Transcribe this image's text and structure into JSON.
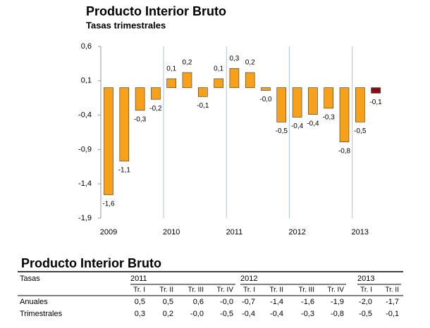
{
  "chart_data": {
    "type": "bar",
    "title": "Producto Interior Bruto",
    "subtitle": "Tasas trimestrales",
    "categories": [
      "2009",
      null,
      null,
      null,
      "2010",
      null,
      null,
      null,
      "2011",
      null,
      null,
      null,
      "2012",
      null,
      null,
      null,
      "2013",
      null
    ],
    "values": [
      -1.56,
      -1.07,
      -0.33,
      -0.17,
      0.13,
      0.22,
      -0.13,
      0.13,
      0.28,
      0.22,
      -0.04,
      -0.5,
      -0.43,
      -0.39,
      -0.3,
      -0.79,
      -0.5,
      -0.08
    ],
    "value_labels": [
      "-1,6",
      "-1,1",
      "-0,3",
      "-0,2",
      "0,1",
      "0,2",
      "-0,1",
      "0,1",
      "0,3",
      "0,2",
      "-0,0",
      "-0,5",
      "-0,4",
      "-0,4",
      "-0,3",
      "-0,8",
      "-0,5",
      "-0,1"
    ],
    "colors": [
      "#f7a11a",
      "#f7a11a",
      "#f7a11a",
      "#f7a11a",
      "#f7a11a",
      "#f7a11a",
      "#f7a11a",
      "#f7a11a",
      "#f7a11a",
      "#f7a11a",
      "#f7a11a",
      "#f7a11a",
      "#f7a11a",
      "#f7a11a",
      "#f7a11a",
      "#f7a11a",
      "#f7a11a",
      "#8b0a0a"
    ],
    "ylim": [
      -1.9,
      0.6
    ],
    "yticks": [
      {
        "value": 0.6,
        "label": "0,6"
      },
      {
        "value": 0.1,
        "label": "0,1"
      },
      {
        "value": -0.4,
        "label": "-0,4"
      },
      {
        "value": -0.9,
        "label": "-0,9"
      },
      {
        "value": -1.4,
        "label": "-1,4"
      },
      {
        "value": -1.9,
        "label": "-1,9"
      }
    ],
    "grid": true
  },
  "table": {
    "title": "Producto Interior Bruto",
    "corner": "Tasas",
    "groups": [
      {
        "year": "2011",
        "quarters": [
          "Tr. I",
          "Tr. II",
          "Tr. III",
          "Tr. IV"
        ]
      },
      {
        "year": "2012",
        "quarters": [
          "Tr. I",
          "Tr. II",
          "Tr. III",
          "Tr. IV"
        ]
      },
      {
        "year": "2013",
        "quarters": [
          "Tr. I",
          "Tr. II"
        ]
      }
    ],
    "rows": [
      {
        "label": "Anuales",
        "values": [
          "0,5",
          "0,5",
          "0,6",
          "-0,0",
          "-0,7",
          "-1,4",
          "-1,6",
          "-1,9",
          "-2,0",
          "-1,7"
        ]
      },
      {
        "label": "Trimestrales",
        "values": [
          "0,3",
          "0,2",
          "-0,0",
          "-0,5",
          "-0,4",
          "-0,4",
          "-0,3",
          "-0,8",
          "-0,5",
          "-0,1"
        ]
      }
    ]
  }
}
